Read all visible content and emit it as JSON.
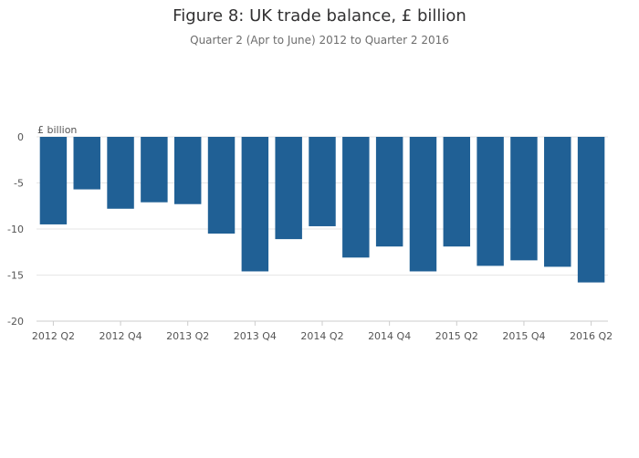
{
  "chart_data": {
    "type": "bar",
    "title": "Figure 8: UK trade balance, £ billion",
    "subtitle": "Quarter 2 (Apr to June) 2012 to Quarter 2 2016",
    "ylabel": "£ billion",
    "xlabel": "",
    "ylim": [
      -20,
      0
    ],
    "yticks": [
      0,
      -5,
      -10,
      -15,
      -20
    ],
    "grid": true,
    "categories": [
      "2012 Q2",
      "2012 Q3",
      "2012 Q4",
      "2013 Q1",
      "2013 Q2",
      "2013 Q3",
      "2013 Q4",
      "2014 Q1",
      "2014 Q2",
      "2014 Q3",
      "2014 Q4",
      "2015 Q1",
      "2015 Q2",
      "2015 Q3",
      "2015 Q4",
      "2016 Q1",
      "2016 Q2"
    ],
    "xtick_labels": [
      "2012 Q2",
      "2012 Q4",
      "2013 Q2",
      "2013 Q4",
      "2014 Q2",
      "2014 Q4",
      "2015 Q2",
      "2015 Q4",
      "2016 Q2"
    ],
    "values": [
      -9.5,
      -5.7,
      -7.8,
      -7.1,
      -7.3,
      -10.5,
      -14.6,
      -11.1,
      -9.7,
      -13.1,
      -11.9,
      -14.6,
      -11.9,
      -14.0,
      -13.4,
      -14.1,
      -15.8
    ],
    "bar_color": "#206095"
  }
}
